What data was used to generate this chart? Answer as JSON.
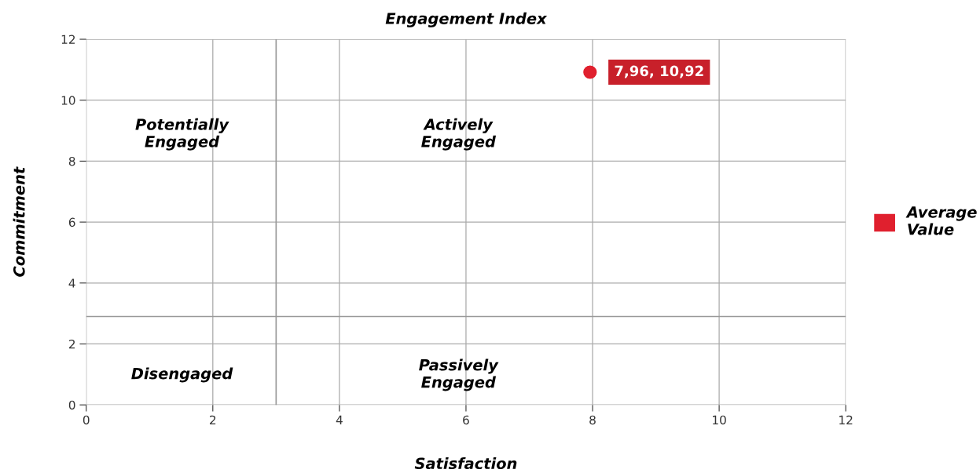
{
  "chart_data": {
    "type": "scatter",
    "title": "Engagement Index",
    "xlabel": "Satisfaction",
    "ylabel": "Commitment",
    "series": [
      {
        "name": "Average Value",
        "color": "#e0202e",
        "x": [
          7.96
        ],
        "values": [
          10.92
        ],
        "value_labels": [
          "7,96, 10,92"
        ]
      }
    ],
    "xlim": [
      0,
      12
    ],
    "ylim": [
      0,
      12
    ],
    "xticks": [
      0,
      2,
      4,
      6,
      8,
      10,
      12
    ],
    "yticks": [
      0,
      2,
      4,
      6,
      8,
      10,
      12
    ],
    "grid": true,
    "legend": "right",
    "marker": "circle",
    "ref_lines": [
      {
        "axis": "x",
        "value": 3,
        "color": "#999999"
      },
      {
        "axis": "y",
        "value": 2.9,
        "color": "#999999"
      }
    ],
    "annotations": [
      "Potentially\nEngaged",
      "Actively\nEngaged",
      "Disengaged",
      "Passively\nEngaged"
    ]
  }
}
